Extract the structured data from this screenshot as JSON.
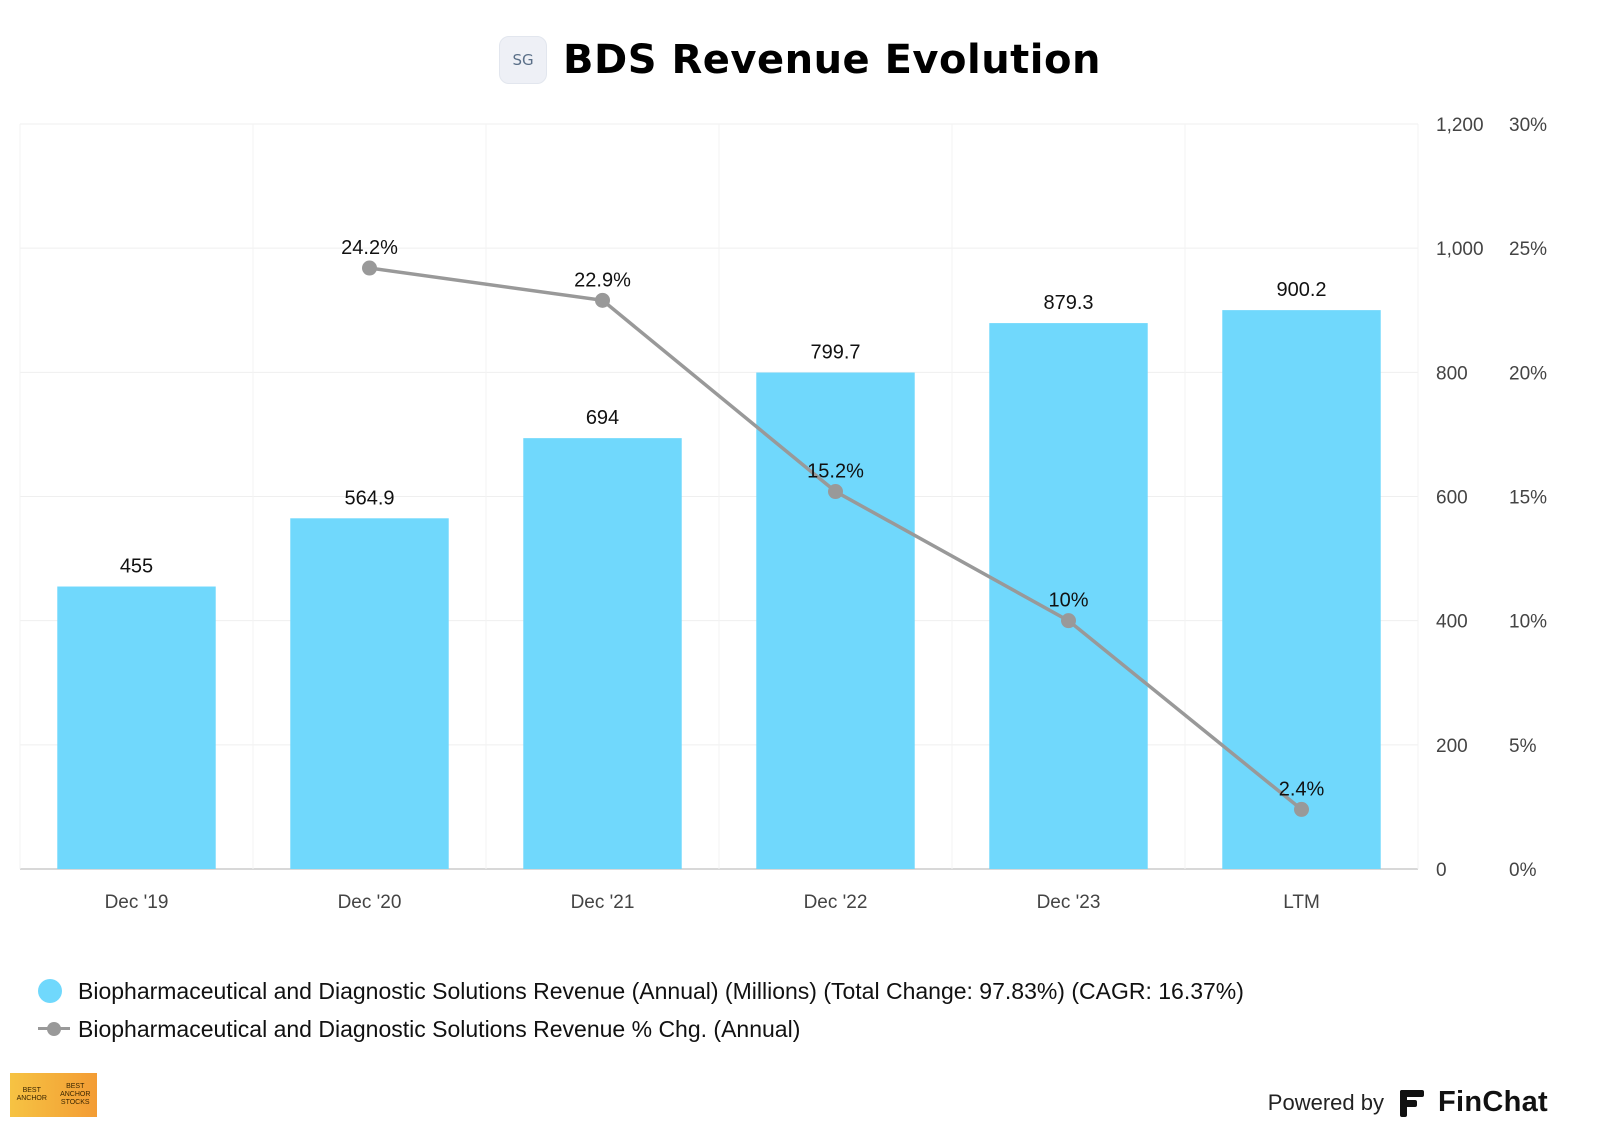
{
  "header": {
    "logo_text": "SG",
    "title": "BDS Revenue Evolution"
  },
  "chart_data": {
    "type": "bar",
    "categories": [
      "Dec '19",
      "Dec '20",
      "Dec '21",
      "Dec '22",
      "Dec '23",
      "LTM"
    ],
    "series": [
      {
        "name": "Biopharmaceutical and Diagnostic Solutions Revenue (Annual) (Millions) (Total Change: 97.83%) (CAGR: 16.37%)",
        "type": "bar",
        "axis": "left",
        "color": "#70d8fc",
        "values": [
          455,
          564.9,
          694,
          799.7,
          879.3,
          900.2
        ],
        "labels": [
          "455",
          "564.9",
          "694",
          "799.7",
          "879.3",
          "900.2"
        ]
      },
      {
        "name": "Biopharmaceutical and Diagnostic Solutions Revenue % Chg. (Annual)",
        "type": "line",
        "axis": "right",
        "color": "#999999",
        "values": [
          null,
          24.2,
          22.9,
          15.2,
          10,
          2.4
        ],
        "labels": [
          "",
          "24.2%",
          "22.9%",
          "15.2%",
          "10%",
          "2.4%"
        ]
      }
    ],
    "y_left": {
      "ylim": [
        0,
        1200
      ],
      "ticks": [
        "0",
        "200",
        "400",
        "600",
        "800",
        "1,000",
        "1,200"
      ]
    },
    "y_right": {
      "ylim": [
        0,
        30
      ],
      "ticks": [
        "0%",
        "5%",
        "10%",
        "15%",
        "20%",
        "25%",
        "30%"
      ]
    },
    "grid": true,
    "legend_position": "bottom-left"
  },
  "legend": {
    "items": [
      {
        "label": "Biopharmaceutical and Diagnostic Solutions Revenue (Annual) (Millions) (Total Change: 97.83%) (CAGR: 16.37%)",
        "marker": "dot",
        "color": "#70d8fc"
      },
      {
        "label": "Biopharmaceutical and Diagnostic Solutions Revenue % Chg. (Annual)",
        "marker": "line",
        "color": "#999999"
      }
    ]
  },
  "footer": {
    "badge_left": "BEST ANCHOR",
    "badge_right": "BEST ANCHOR STOCKS",
    "powered_by": "Powered by",
    "brand": "FinChat"
  }
}
